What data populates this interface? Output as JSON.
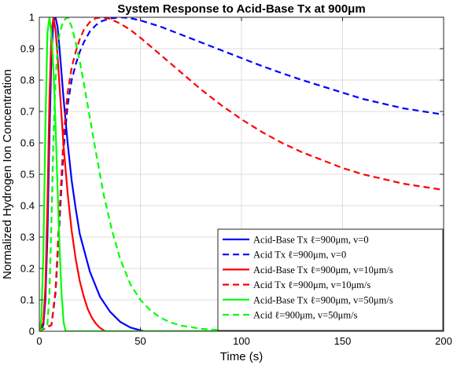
{
  "chart_data": {
    "type": "line",
    "title": "System Response to Acid-Base Tx at 900μm",
    "xlabel": "Time (s)",
    "ylabel": "Normalized Hydrogen Ion Concentration",
    "xlim": [
      0,
      200
    ],
    "ylim": [
      0,
      1
    ],
    "xticks": [
      0,
      50,
      100,
      150,
      200
    ],
    "yticks": [
      0,
      0.1,
      0.2,
      0.3,
      0.4,
      0.5,
      0.6,
      0.7,
      0.8,
      0.9,
      1
    ],
    "grid": true,
    "legend_position": "bottom-right",
    "series": [
      {
        "name": "Acid-Base Tx ℓ=900μm, v=0",
        "color": "#0000ff",
        "dash": "solid",
        "x": [
          0,
          2,
          3,
          4,
          5,
          6,
          7,
          8,
          9,
          10,
          12,
          14,
          16,
          18,
          20,
          25,
          30,
          35,
          40,
          45,
          50,
          52,
          55,
          60,
          80,
          100,
          120,
          150,
          180,
          200
        ],
        "y": [
          0,
          0.02,
          0.1,
          0.3,
          0.62,
          0.88,
          0.99,
          1.0,
          0.97,
          0.9,
          0.74,
          0.6,
          0.48,
          0.39,
          0.31,
          0.19,
          0.11,
          0.062,
          0.03,
          0.012,
          0.003,
          0.0,
          0,
          0,
          0,
          0,
          0,
          0,
          0,
          0
        ]
      },
      {
        "name": "Acid Tx ℓ=900μm, v=0",
        "color": "#0000ff",
        "dash": "dashed",
        "x": [
          0,
          6,
          8,
          10,
          12,
          14,
          16,
          18,
          20,
          22,
          25,
          28,
          31,
          35,
          40,
          45,
          50,
          60,
          70,
          80,
          90,
          100,
          110,
          120,
          130,
          140,
          150,
          160,
          170,
          180,
          190,
          200
        ],
        "y": [
          0,
          0.02,
          0.12,
          0.35,
          0.58,
          0.72,
          0.8,
          0.85,
          0.89,
          0.92,
          0.955,
          0.975,
          0.988,
          0.996,
          1.0,
          0.997,
          0.99,
          0.97,
          0.945,
          0.92,
          0.895,
          0.87,
          0.845,
          0.822,
          0.8,
          0.78,
          0.76,
          0.74,
          0.725,
          0.71,
          0.7,
          0.69
        ]
      },
      {
        "name": "Acid-Base Tx ℓ=900μm, v=10μm/s",
        "color": "#ff0000",
        "dash": "solid",
        "x": [
          0,
          2,
          3,
          4,
          5,
          6,
          7,
          8,
          9,
          10,
          12,
          14,
          16,
          18,
          20,
          22,
          24,
          26,
          28,
          30,
          32,
          33,
          40,
          60,
          100,
          150,
          200
        ],
        "y": [
          0,
          0.03,
          0.14,
          0.4,
          0.74,
          0.95,
          1.0,
          0.96,
          0.88,
          0.78,
          0.59,
          0.44,
          0.32,
          0.23,
          0.16,
          0.11,
          0.07,
          0.043,
          0.024,
          0.011,
          0.002,
          0.0,
          0,
          0,
          0,
          0,
          0
        ]
      },
      {
        "name": "Acid Tx ℓ=900μm, v=10μm/s",
        "color": "#ff0000",
        "dash": "dashed",
        "x": [
          0,
          6,
          8,
          10,
          12,
          14,
          16,
          18,
          20,
          22,
          25,
          28,
          31,
          35,
          40,
          45,
          50,
          60,
          70,
          80,
          90,
          100,
          110,
          120,
          130,
          140,
          150,
          160,
          170,
          180,
          190,
          200
        ],
        "y": [
          0,
          0.02,
          0.13,
          0.38,
          0.62,
          0.76,
          0.84,
          0.89,
          0.93,
          0.96,
          0.985,
          0.997,
          1.0,
          0.995,
          0.98,
          0.96,
          0.935,
          0.88,
          0.825,
          0.77,
          0.72,
          0.675,
          0.635,
          0.6,
          0.57,
          0.545,
          0.52,
          0.5,
          0.485,
          0.47,
          0.46,
          0.45
        ]
      },
      {
        "name": "Acid-Base Tx ℓ=900μm, v=50μm/s",
        "color": "#00ff00",
        "dash": "solid",
        "x": [
          0,
          1,
          2,
          3,
          4,
          5,
          6,
          7,
          8,
          9,
          10,
          11,
          12,
          13,
          14,
          20,
          50,
          100,
          150,
          200
        ],
        "y": [
          0,
          0.04,
          0.25,
          0.65,
          0.95,
          1.0,
          0.95,
          0.83,
          0.66,
          0.46,
          0.27,
          0.12,
          0.03,
          0.0,
          0,
          0,
          0,
          0,
          0,
          0
        ]
      },
      {
        "name": "Acid ℓ=900μm, v=50μm/s",
        "color": "#00ff00",
        "dash": "dashed",
        "x": [
          0,
          4,
          5,
          6,
          7,
          8,
          9,
          10,
          12,
          14,
          16,
          18,
          20,
          22,
          25,
          28,
          32,
          36,
          40,
          45,
          50,
          55,
          60,
          65,
          70,
          80,
          90,
          100,
          120,
          150,
          200
        ],
        "y": [
          0,
          0.02,
          0.12,
          0.35,
          0.62,
          0.8,
          0.9,
          0.95,
          0.99,
          1.0,
          0.97,
          0.92,
          0.86,
          0.79,
          0.68,
          0.57,
          0.43,
          0.32,
          0.23,
          0.15,
          0.1,
          0.066,
          0.043,
          0.028,
          0.018,
          0.008,
          0.003,
          0.001,
          0,
          0,
          0
        ]
      }
    ]
  }
}
